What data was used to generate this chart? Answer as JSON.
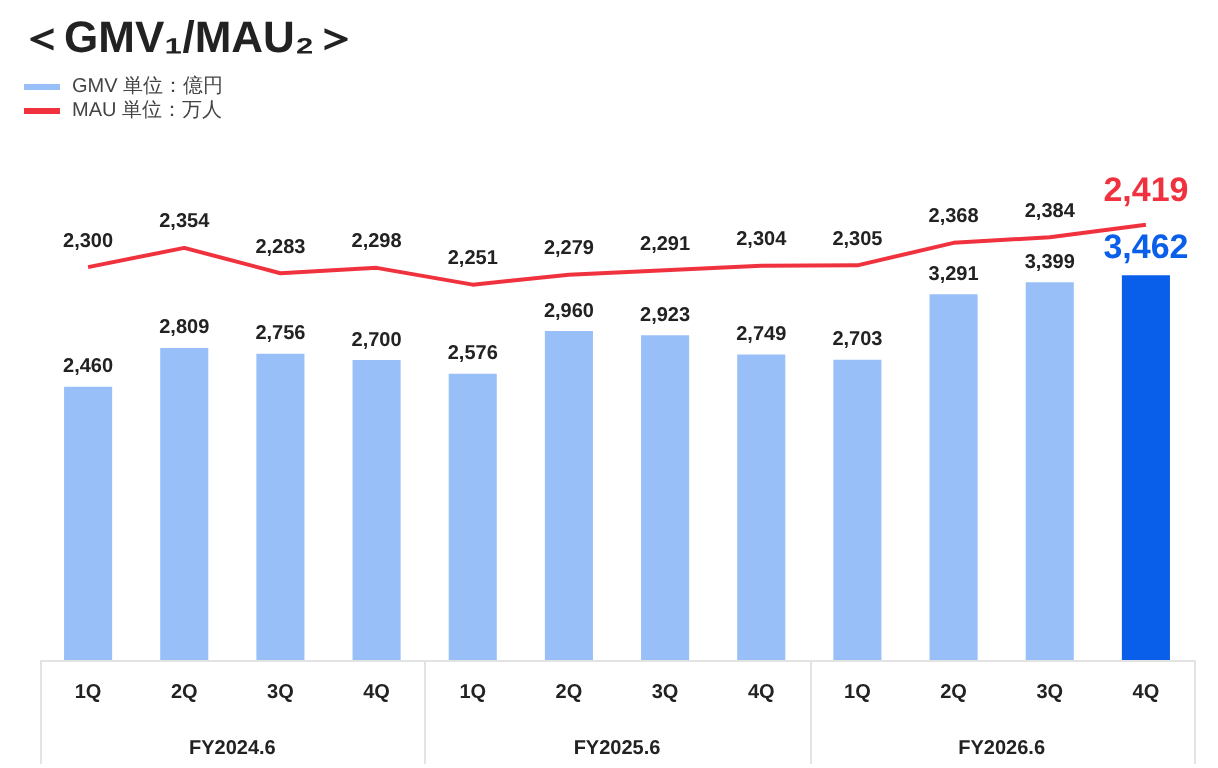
{
  "chart_data": {
    "type": "bar",
    "title": "＜GMV₁/MAU₂＞",
    "categories": [
      "1Q",
      "2Q",
      "3Q",
      "4Q",
      "1Q",
      "2Q",
      "3Q",
      "4Q",
      "1Q",
      "2Q",
      "3Q",
      "4Q"
    ],
    "series": [
      {
        "name": "GMV 単位：億円",
        "color": "#99bff8",
        "colors": [
          "#99bff8",
          "#99bff8",
          "#99bff8",
          "#99bff8",
          "#99bff8",
          "#99bff8",
          "#99bff8",
          "#99bff8",
          "#99bff8",
          "#99bff8",
          "#99bff8",
          "#0a5fea"
        ],
        "values": [
          2460,
          2809,
          2756,
          2700,
          2576,
          2960,
          2923,
          2749,
          2703,
          3291,
          3399,
          3462
        ],
        "value_labels": [
          "2,460",
          "2,809",
          "2,756",
          "2,700",
          "2,576",
          "2,960",
          "2,923",
          "2,749",
          "2,703",
          "3,291",
          "3,399",
          "3,462"
        ]
      },
      {
        "name": "MAU 単位：万人",
        "type": "line",
        "axis": "y2",
        "color": "#f0323f",
        "values": [
          2300,
          2354,
          2283,
          2298,
          2251,
          2279,
          2291,
          2304,
          2305,
          2368,
          2384,
          2419
        ],
        "value_labels": [
          "2,300",
          "2,354",
          "2,283",
          "2,298",
          "2,251",
          "2,279",
          "2,291",
          "2,304",
          "2,305",
          "2,368",
          "2,384",
          "2,419"
        ]
      }
    ],
    "annotations": [
      "FY2024.6",
      "FY2025.6",
      "FY2026.6"
    ],
    "legend": "top left",
    "grid": false,
    "tick_labels": "x",
    "marker": "none",
    "line_style": "solid"
  }
}
